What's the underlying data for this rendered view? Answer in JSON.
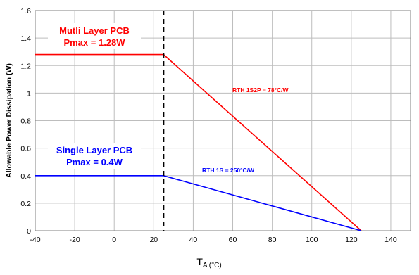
{
  "chart_data": {
    "type": "line",
    "xlabel": {
      "main": "T",
      "sub": "A (°C)"
    },
    "ylabel": "Allowable Power Dissipation (W)",
    "xlim": [
      -40,
      150
    ],
    "ylim": [
      0,
      1.6
    ],
    "x_ticks": [
      "-40",
      "-20",
      "0",
      "20",
      "40",
      "60",
      "80",
      "100",
      "120",
      "140"
    ],
    "y_ticks": [
      "0",
      "0.2",
      "0.4",
      "0.6",
      "0.8",
      "1",
      "1.2",
      "1.4",
      "1.6"
    ],
    "grid": true,
    "vertical_marker": {
      "x": 25,
      "style": "dashed",
      "color": "#000000"
    },
    "series": [
      {
        "color": "#ff0000",
        "points": [
          [
            -40,
            1.28
          ],
          [
            25,
            1.28
          ],
          [
            125,
            0
          ]
        ]
      },
      {
        "color": "#0000ff",
        "points": [
          [
            -40,
            0.4
          ],
          [
            25,
            0.4
          ],
          [
            125,
            0
          ]
        ]
      }
    ],
    "annotations": [
      {
        "lines": [
          "Mutli Layer PCB",
          "Pmax = 1.28W"
        ],
        "color": "#ff0000"
      },
      {
        "lines": [
          "Single Layer PCB",
          "Pmax = 0.4W"
        ],
        "color": "#0000ff"
      },
      {
        "rth_prefix": "RTH 1S2P",
        "rth_suffix": " = 78°C/W",
        "color": "#ff0000"
      },
      {
        "rth_prefix": "RTH 1S",
        "rth_suffix": " = 250°C/W",
        "color": "#0000ff"
      }
    ]
  }
}
